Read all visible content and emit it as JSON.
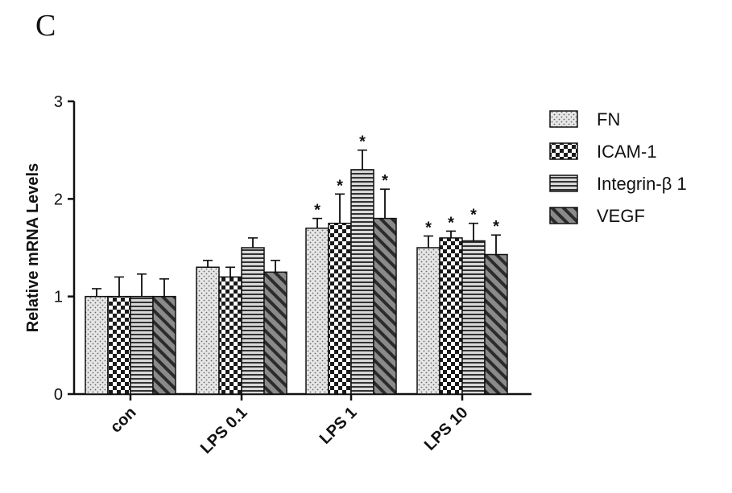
{
  "panel_label": "C",
  "chart_data": {
    "type": "bar",
    "categories": [
      "con",
      "LPS 0.1",
      "LPS 1",
      "LPS 10"
    ],
    "ylabel": "Relative mRNA Levels",
    "ylim": [
      0,
      3
    ],
    "yticks": [
      "0",
      "1",
      "2",
      "3"
    ],
    "legend_position": "top-right",
    "significance_marker": "*",
    "series": [
      {
        "name": "FN",
        "pattern": "dots",
        "values": [
          1.0,
          1.3,
          1.7,
          1.5
        ],
        "errors": [
          0.08,
          0.07,
          0.1,
          0.12
        ],
        "significant": [
          false,
          false,
          true,
          true
        ]
      },
      {
        "name": "ICAM-1",
        "pattern": "checker",
        "values": [
          1.0,
          1.2,
          1.75,
          1.6
        ],
        "errors": [
          0.2,
          0.1,
          0.3,
          0.07
        ],
        "significant": [
          false,
          false,
          true,
          true
        ]
      },
      {
        "name": "Integrin-β 1",
        "pattern": "hstripes",
        "values": [
          1.0,
          1.5,
          2.3,
          1.57
        ],
        "errors": [
          0.23,
          0.1,
          0.2,
          0.18
        ],
        "significant": [
          false,
          false,
          true,
          true
        ]
      },
      {
        "name": "VEGF",
        "pattern": "diagonal",
        "values": [
          1.0,
          1.25,
          1.8,
          1.43
        ],
        "errors": [
          0.18,
          0.12,
          0.3,
          0.2
        ],
        "significant": [
          false,
          false,
          true,
          true
        ]
      }
    ]
  }
}
